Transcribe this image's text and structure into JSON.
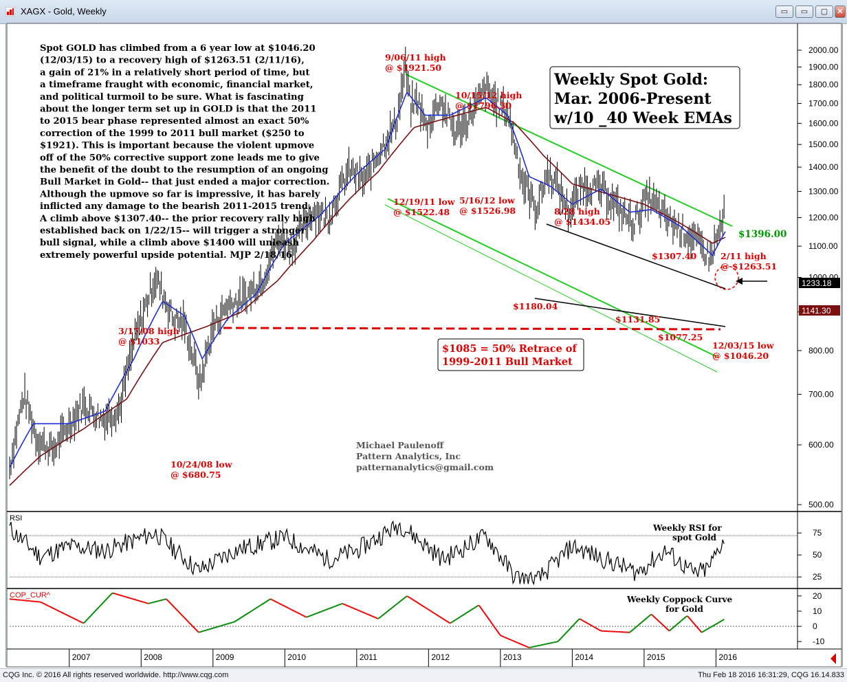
{
  "window": {
    "title": "XAGX - Gold, Weekly",
    "buttons": [
      "▭",
      "▭",
      "▢",
      "✕"
    ]
  },
  "status": {
    "left": "CQG Inc. © 2016 All rights reserved worldwide. http://www.cqg.com",
    "right": "Thu Feb 18 2016 16:31:29, CQG 16.14.833"
  },
  "commentary": [
    "Spot GOLD has climbed from a 6 year low at $1046.20",
    "(12/03/15) to a recovery high of $1263.51 (2/11/16),",
    "a gain of 21% in a relatively short period of time, but",
    "a timeframe fraught with economic, financial market,",
    "and political turmoil to be sure. What is fascinating",
    "about the longer term set up in GOLD is that the 2011",
    "to 2015 bear phase represented almost an exact 50%",
    "correction of the 1999 to 2011 bull market ($250 to",
    "$1921). This is important because the violent upmove",
    "off of the 50% corrective support zone leads me to give",
    "the benefit of the doubt to the resumption of an ongoing",
    "Bull Market in Gold-- that just ended a major correction.",
    "Although the upmove so far is impressive, it has barely",
    "inflicted any damage to the bearish 2011-2015 trend.",
    "A climb above $1307.40-- the prior recovery rally high",
    "established back on 1/22/15-- will trigger a stronger",
    "bull signal, while a climb above $1400 will unleash",
    "extremely powerful upside potential. MJP 2/18/16"
  ],
  "title_box": [
    "Weekly Spot Gold:",
    "Mar. 2006-Present",
    "w/10 _40 Week EMAs"
  ],
  "retrace_box": [
    "$1085 = 50% Retrace of",
    "1999-2011 Bull Market"
  ],
  "author": [
    "Michael Paulenoff",
    "Pattern Analytics, Inc",
    "patternanalytics@gmail.com"
  ],
  "annotations": [
    {
      "lines": [
        "9/06/11 high",
        "@ $1921.50"
      ]
    },
    {
      "lines": [
        "10/15/12 high",
        "@ $1796.30"
      ]
    },
    {
      "lines": [
        "12/19/11 low",
        "@ $1522.48"
      ]
    },
    {
      "lines": [
        "5/16/12 low",
        "@ $1526.98"
      ]
    },
    {
      "lines": [
        "8/28 high",
        "@ $1434.05"
      ]
    },
    {
      "lines": [
        "3/17/08 high",
        "@ $1033"
      ]
    },
    {
      "lines": [
        "10/24/08 low",
        "@ $680.75"
      ]
    },
    {
      "lines": [
        "$1307.40"
      ]
    },
    {
      "lines": [
        "2/11 high",
        "@ $1263.51"
      ]
    },
    {
      "lines": [
        "$1180.04"
      ]
    },
    {
      "lines": [
        "$1131.85"
      ]
    },
    {
      "lines": [
        "$1077.25"
      ]
    },
    {
      "lines": [
        "12/03/15 low",
        "@ $1046.20"
      ]
    }
  ],
  "target_label": "$1396.00",
  "price_badges": {
    "last": "1233.18",
    "ema": "1141.30"
  },
  "rsi_label": "RSI",
  "rsi_title": [
    "Weekly RSI for",
    "spot Gold"
  ],
  "coppock_label": "COP_CUR^",
  "coppock_title": [
    "Weekly Coppock Curve",
    "for Gold"
  ],
  "colors": {
    "price_bars": "#000000",
    "ema_fast": "#1f2fd6",
    "ema_slow": "#7a0f10",
    "channel": "#22cc22",
    "annotation": "#e00000",
    "target": "#009900",
    "coppock_up": "#008800",
    "coppock_down": "#ee0000"
  },
  "chart_data": [
    {
      "type": "line",
      "name": "price",
      "xlim": [
        "2006-03",
        "2016-02"
      ],
      "x_ticks": [
        "2007",
        "2008",
        "2009",
        "2010",
        "2011",
        "2012",
        "2013",
        "2014",
        "2015",
        "2016"
      ],
      "ylim": [
        480,
        2050
      ],
      "y_ticks": [
        "2000.00",
        "1900.00",
        "1800.00",
        "1700.00",
        "1600.00",
        "1500.00",
        "1400.00",
        "1300.00",
        "1200.00",
        "1100.00",
        "1000.00",
        "900.00",
        "800.00",
        "700.00",
        "600.00",
        "500.00"
      ],
      "log_scale": true,
      "grid": false,
      "series": [
        {
          "key": "price",
          "x": [
            2006.17,
            2006.37,
            2006.55,
            2006.78,
            2007.0,
            2007.2,
            2007.45,
            2007.7,
            2007.9,
            2008.2,
            2008.45,
            2008.6,
            2008.82,
            2009.0,
            2009.2,
            2009.45,
            2009.7,
            2009.92,
            2010.1,
            2010.4,
            2010.6,
            2010.9,
            2011.1,
            2011.35,
            2011.55,
            2011.68,
            2011.75,
            2011.85,
            2011.97,
            2012.15,
            2012.37,
            2012.55,
            2012.8,
            2012.95,
            2013.1,
            2013.3,
            2013.5,
            2013.66,
            2013.8,
            2013.95,
            2014.15,
            2014.45,
            2014.65,
            2014.85,
            2015.06,
            2015.3,
            2015.55,
            2015.75,
            2015.92,
            2016.1,
            2016.13
          ],
          "y": [
            560,
            700,
            610,
            590,
            640,
            680,
            650,
            670,
            820,
            1000,
            880,
            870,
            720,
            860,
            920,
            940,
            1000,
            1130,
            1100,
            1230,
            1200,
            1390,
            1340,
            1490,
            1600,
            1900,
            1680,
            1720,
            1570,
            1720,
            1560,
            1620,
            1780,
            1700,
            1660,
            1350,
            1230,
            1380,
            1320,
            1220,
            1330,
            1300,
            1230,
            1180,
            1280,
            1200,
            1150,
            1110,
            1060,
            1190,
            1233
          ]
        },
        {
          "key": "ema10",
          "x": [
            2006.17,
            2006.5,
            2007.0,
            2007.5,
            2007.9,
            2008.3,
            2008.6,
            2008.85,
            2009.2,
            2009.6,
            2010.0,
            2010.5,
            2011.0,
            2011.4,
            2011.7,
            2011.95,
            2012.3,
            2012.8,
            2013.1,
            2013.4,
            2013.7,
            2014.0,
            2014.4,
            2014.8,
            2015.1,
            2015.5,
            2015.95,
            2016.13
          ],
          "y": [
            560,
            640,
            640,
            665,
            780,
            930,
            890,
            780,
            880,
            950,
            1110,
            1210,
            1370,
            1480,
            1760,
            1640,
            1640,
            1730,
            1640,
            1360,
            1320,
            1250,
            1310,
            1220,
            1230,
            1170,
            1070,
            1150
          ]
        },
        {
          "key": "ema40",
          "x": [
            2006.17,
            2006.6,
            2007.2,
            2007.8,
            2008.3,
            2008.9,
            2009.4,
            2009.9,
            2010.4,
            2010.9,
            2011.3,
            2011.8,
            2012.3,
            2012.8,
            2013.2,
            2013.6,
            2014.0,
            2014.5,
            2015.0,
            2015.5,
            2015.95,
            2016.13
          ],
          "y": [
            530,
            580,
            630,
            690,
            820,
            860,
            900,
            990,
            1120,
            1270,
            1380,
            1580,
            1630,
            1680,
            1600,
            1450,
            1330,
            1290,
            1250,
            1180,
            1110,
            1130
          ]
        }
      ],
      "notes": "EMA 10 (blue) and EMA 40 (dark red) overlays; green declining channel with target $1396.00; dashed support at $1085."
    },
    {
      "type": "line",
      "name": "RSI",
      "ylim": [
        15,
        90
      ],
      "y_ticks": [
        "75",
        "50",
        "25"
      ],
      "reference_lines": [
        72,
        25
      ],
      "series": [
        {
          "key": "rsi",
          "x": [
            2006.17,
            2006.6,
            2007.0,
            2007.5,
            2008.2,
            2008.8,
            2009.3,
            2010.0,
            2010.6,
            2011.0,
            2011.6,
            2012.2,
            2012.8,
            2013.2,
            2013.5,
            2014.0,
            2014.6,
            2014.9,
            2015.3,
            2015.7,
            2015.9,
            2016.13
          ],
          "y": [
            80,
            48,
            60,
            55,
            75,
            32,
            55,
            70,
            45,
            55,
            85,
            45,
            72,
            25,
            20,
            60,
            40,
            30,
            55,
            28,
            35,
            72
          ]
        }
      ]
    },
    {
      "type": "line",
      "name": "Coppock Curve",
      "ylim": [
        -14,
        24
      ],
      "y_ticks": [
        "20",
        "10",
        "0",
        "-10"
      ],
      "series": [
        {
          "key": "coppock",
          "x": [
            2006.17,
            2006.6,
            2007.2,
            2007.6,
            2008.1,
            2008.35,
            2008.8,
            2009.3,
            2009.8,
            2010.3,
            2010.8,
            2011.3,
            2011.7,
            2011.9,
            2012.3,
            2012.7,
            2013.0,
            2013.4,
            2013.8,
            2014.1,
            2014.4,
            2014.8,
            2015.1,
            2015.35,
            2015.6,
            2015.8,
            2016.13
          ],
          "y": [
            18,
            16,
            2,
            22,
            15,
            18,
            -4,
            3,
            18,
            6,
            15,
            5,
            20,
            14,
            2,
            14,
            -6,
            -14,
            -10,
            5,
            -3,
            -4,
            8,
            -3,
            7,
            -4,
            5
          ]
        }
      ]
    }
  ]
}
